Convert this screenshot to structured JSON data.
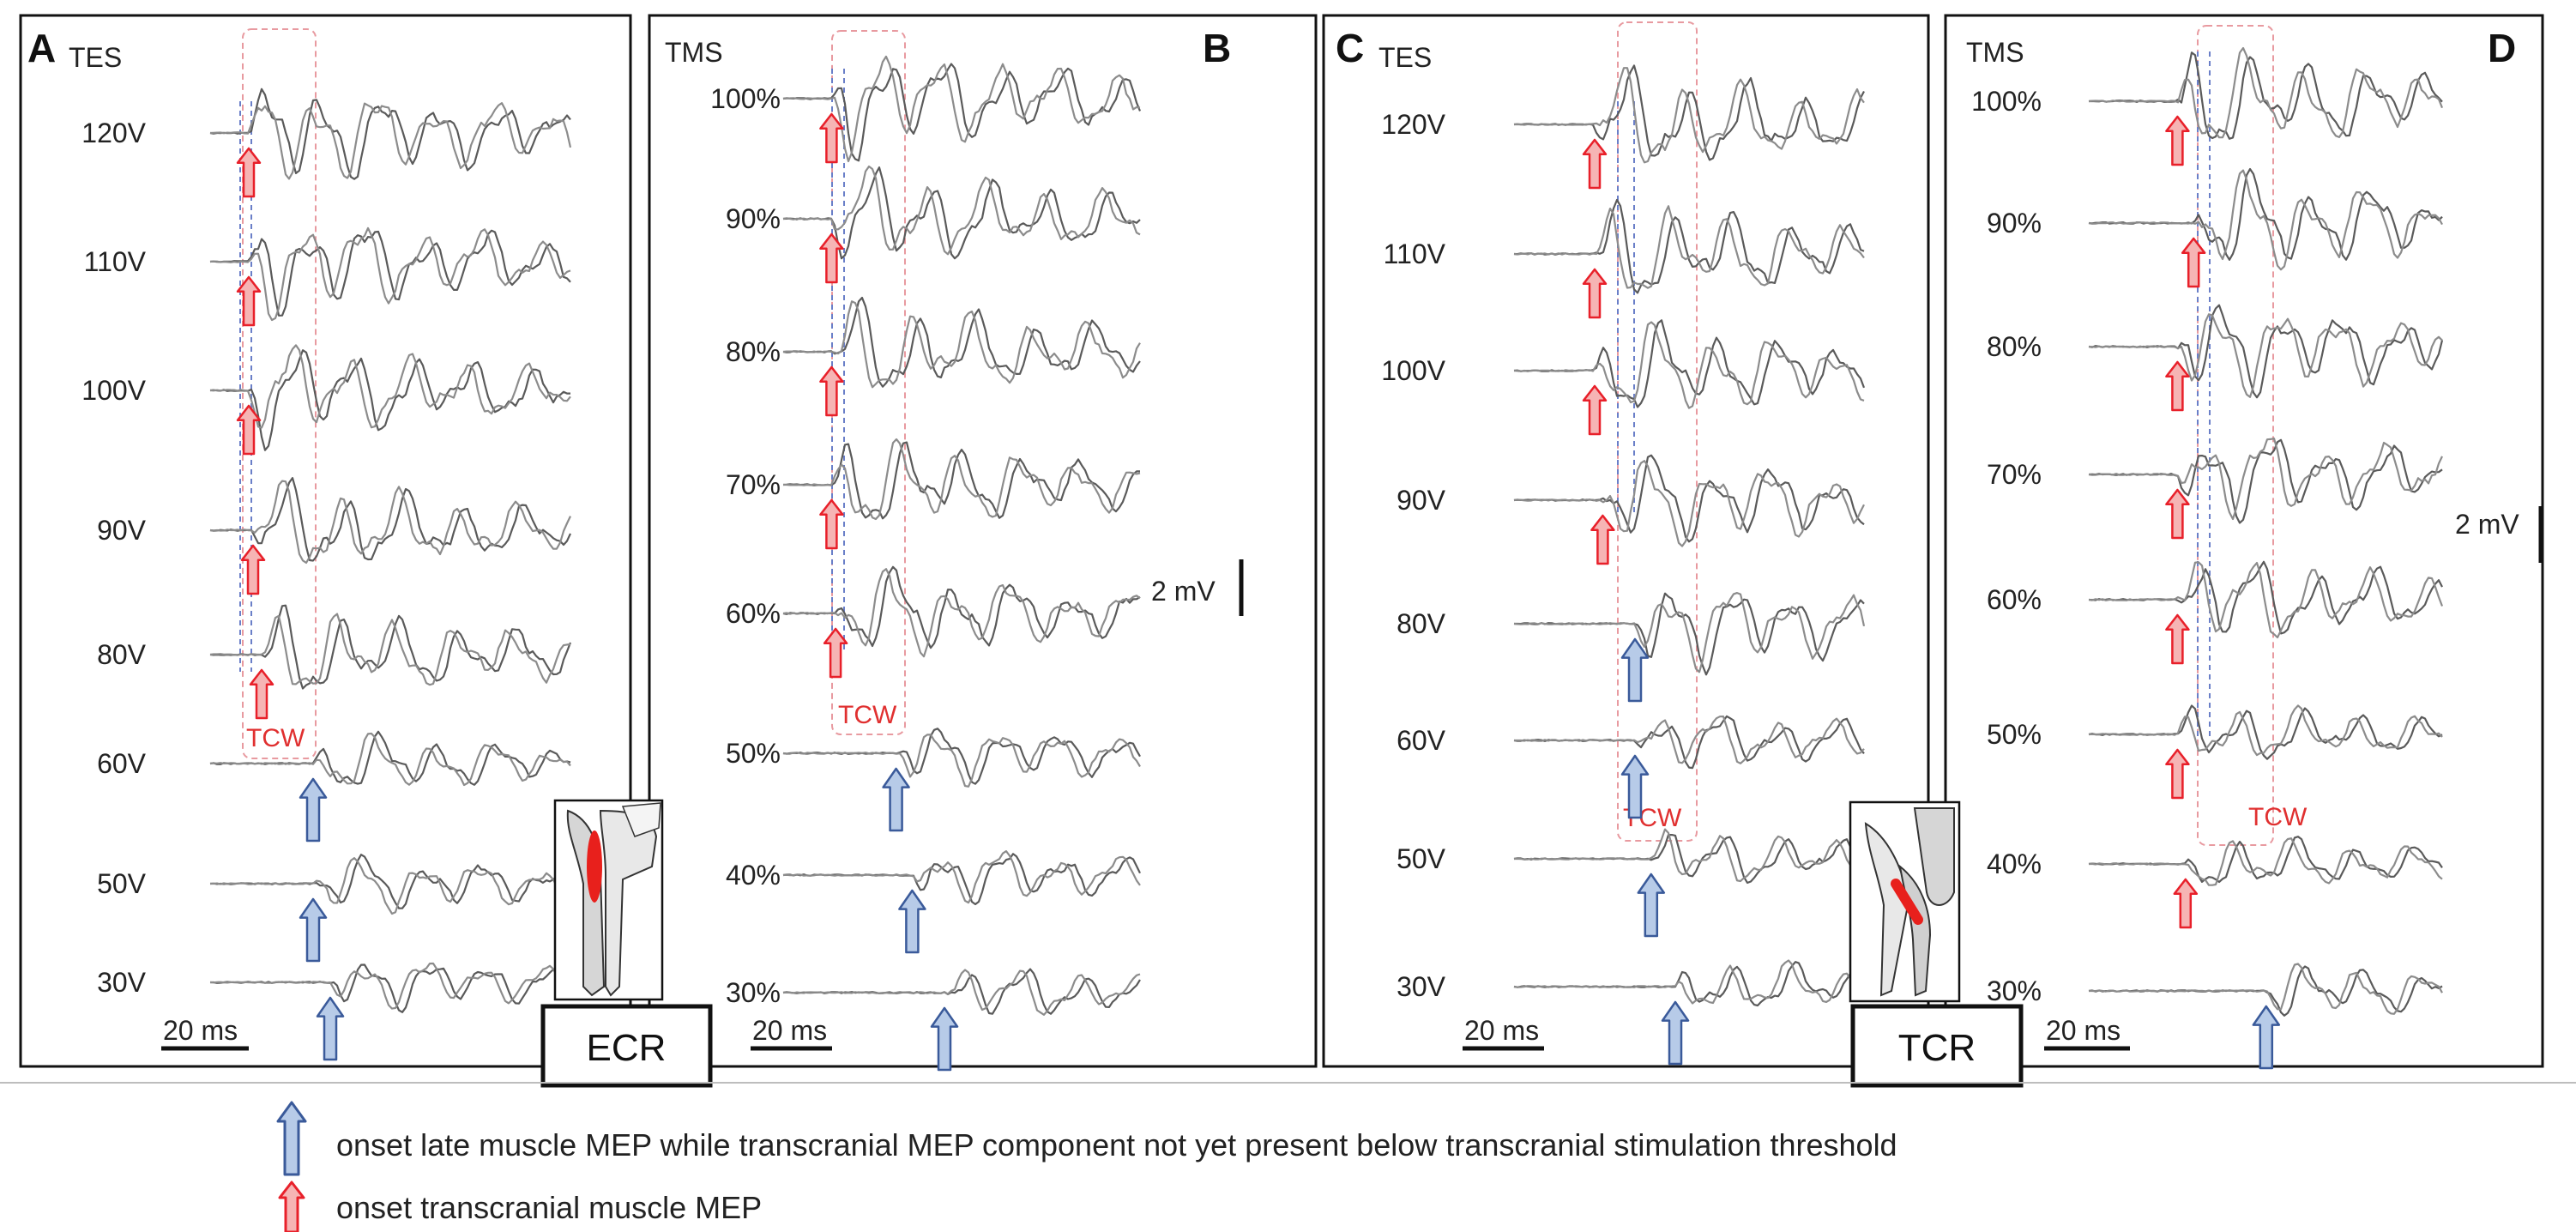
{
  "colors": {
    "trace": "#5a5a5a",
    "trace_light": "#8c8c8c",
    "frame": "#111111",
    "red_arrow": "#e8202a",
    "red_fill": "#f6b4b4",
    "blue_arrow": "#3a5a9a",
    "blue_fill": "#b7cbe8",
    "tcw_box": "#e89aa0",
    "tcw_text": "#e03030",
    "marker_line": "#6a7fc8",
    "muscle": "#e8201c",
    "bone": "#d6d6d6"
  },
  "chart_data": [
    {
      "type": "line",
      "panel": "A",
      "title": "TES",
      "intensity_labels": [
        "120V",
        "110V",
        "100V",
        "90V",
        "80V",
        "60V",
        "50V",
        "30V"
      ],
      "red_arrow_rows": [
        0,
        1,
        2,
        3,
        4
      ],
      "blue_arrow_rows": [
        5,
        6,
        7
      ],
      "onset_ms": [
        4.5,
        4.5,
        4.5,
        5,
        6,
        12,
        12,
        14
      ],
      "window_label": "TCW",
      "scale_time": "20 ms",
      "muscle": "ECR"
    },
    {
      "type": "line",
      "panel": "B",
      "title": "TMS",
      "intensity_labels": [
        "100%",
        "90%",
        "80%",
        "70%",
        "60%",
        "50%",
        "40%",
        "30%"
      ],
      "red_arrow_rows": [
        0,
        1,
        2,
        3,
        4
      ],
      "blue_arrow_rows": [
        5,
        6,
        7
      ],
      "onset_ms": [
        6,
        6,
        6,
        6,
        6.5,
        14,
        16,
        20
      ],
      "window_label": "TCW",
      "scale_time": "20 ms",
      "scale_amplitude": "2 mV"
    },
    {
      "type": "line",
      "panel": "C",
      "title": "TES",
      "intensity_labels": [
        "120V",
        "110V",
        "100V",
        "90V",
        "80V",
        "60V",
        "50V",
        "30V"
      ],
      "red_arrow_rows": [
        0,
        1,
        2,
        3
      ],
      "blue_arrow_rows": [
        4,
        5,
        6,
        7
      ],
      "onset_ms": [
        10,
        10,
        10,
        11,
        15,
        15,
        17,
        20
      ],
      "window_label": "TCW",
      "scale_time": "20 ms",
      "muscle": "TCR"
    },
    {
      "type": "line",
      "panel": "D",
      "title": "TMS",
      "intensity_labels": [
        "100%",
        "90%",
        "80%",
        "70%",
        "60%",
        "50%",
        "40%",
        "30%"
      ],
      "red_arrow_rows": [
        0,
        1,
        2,
        3,
        4,
        5,
        6
      ],
      "blue_arrow_rows": [
        7
      ],
      "onset_ms": [
        11,
        13,
        11,
        11,
        11,
        11,
        12,
        22
      ],
      "window_label": "TCW",
      "scale_time": "20 ms",
      "scale_amplitude": "2 mV"
    }
  ],
  "legend": [
    {
      "marker": "blue-arrow",
      "text": "onset late muscle MEP while transcranial MEP component not yet present below transcranial stimulation threshold"
    },
    {
      "marker": "red-arrow",
      "text": "onset transcranial muscle MEP"
    }
  ]
}
